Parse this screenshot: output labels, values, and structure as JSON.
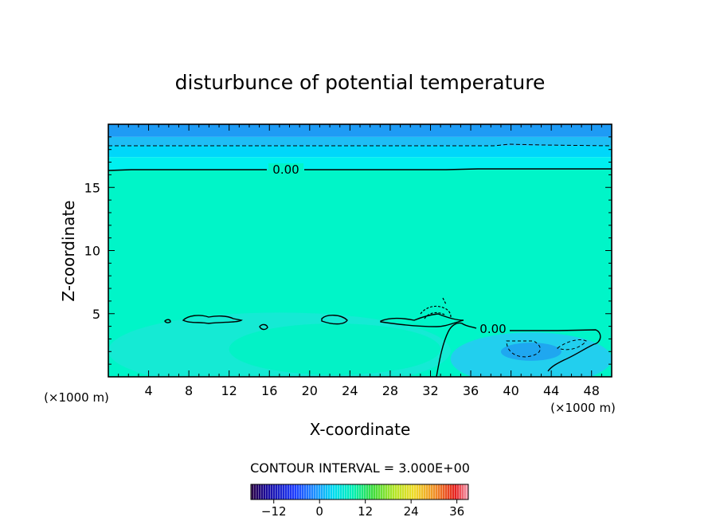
{
  "chart_data": {
    "type": "heatmap",
    "title": "disturbunce of potential temperature",
    "xlabel": "X-coordinate",
    "ylabel": "Z-coordinate",
    "x_unit_left": "(×1000 m)",
    "x_unit_right": "(×1000 m)",
    "xlim": [
      0,
      50
    ],
    "ylim": [
      0,
      20
    ],
    "x_ticks": [
      4,
      8,
      12,
      16,
      20,
      24,
      28,
      32,
      36,
      40,
      44,
      48
    ],
    "y_ticks": [
      5,
      10,
      15
    ],
    "contour_label": "0.00",
    "contour_interval_text": "CONTOUR INTERVAL = 3.000E+00",
    "colorbar": {
      "range": [
        -18,
        39
      ],
      "ticks": [
        -12,
        0,
        12,
        24,
        36
      ],
      "tick_labels": [
        "−12",
        "0",
        "12",
        "24",
        "36"
      ]
    },
    "field_levels": [
      {
        "z_min": 19.0,
        "z_max": 20.0,
        "color": "#1E9BF5"
      },
      {
        "z_min": 18.3,
        "z_max": 19.0,
        "color": "#1EBDF5"
      },
      {
        "z_min": 17.4,
        "z_max": 18.3,
        "color": "#00D7FA"
      },
      {
        "z_min": 16.4,
        "z_max": 17.4,
        "color": "#00F0F0"
      },
      {
        "z_min": 0,
        "z_max": 16.4,
        "color": "#00F5C8"
      }
    ],
    "regions": [
      {
        "name": "low-level-cool-pool",
        "x_range": [
          34,
          50
        ],
        "z_range": [
          0,
          3.8
        ],
        "color": "#28C8F5"
      },
      {
        "name": "cool-core",
        "x_range": [
          39,
          45
        ],
        "z_range": [
          1.5,
          2.8
        ],
        "color": "#1EA0F0"
      },
      {
        "name": "lower-layer-left",
        "x_range": [
          0,
          34
        ],
        "z_range": [
          0,
          5.5
        ],
        "color": "#19E8D6"
      },
      {
        "name": "warm-patch",
        "x_range": [
          12,
          33
        ],
        "z_range": [
          0.8,
          4.5
        ],
        "color": "#00F3C3"
      }
    ]
  }
}
